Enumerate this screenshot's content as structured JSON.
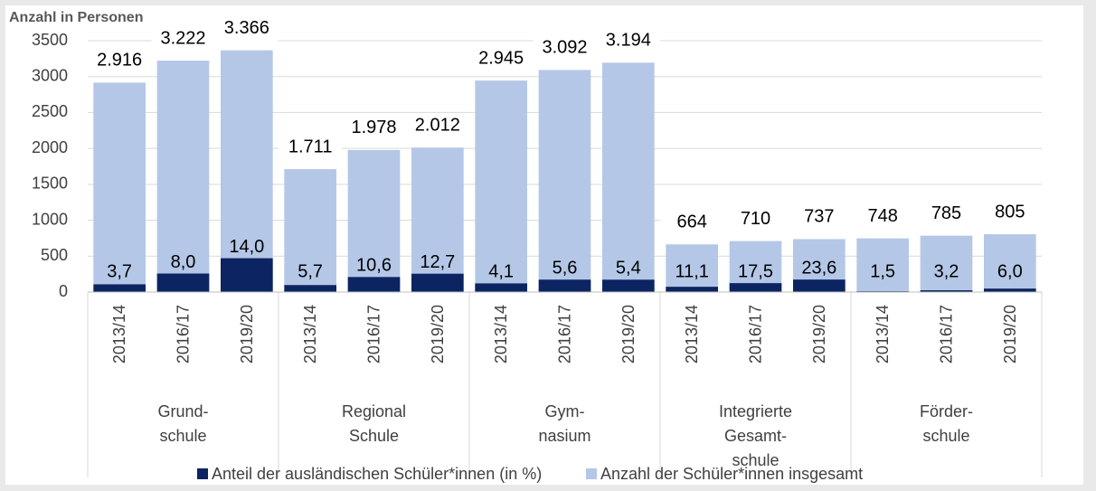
{
  "chart_data": {
    "type": "bar",
    "y_axis_label": "Anzahl in Personen",
    "categories": [
      "2013/14",
      "2016/17",
      "2019/20",
      "2013/14",
      "2016/17",
      "2019/20",
      "2013/14",
      "2016/17",
      "2019/20",
      "2013/14",
      "2016/17",
      "2019/20",
      "2013/14",
      "2016/17",
      "2019/20"
    ],
    "group_labels": [
      [
        "Grund-",
        "schule"
      ],
      [
        "Regional",
        "Schule"
      ],
      [
        "Gym-",
        "nasium"
      ],
      [
        "Integrierte",
        "Gesamt-",
        "schule"
      ],
      [
        "Förder-",
        "schule"
      ]
    ],
    "ylim": [
      0,
      3500
    ],
    "yticks": [
      0,
      500,
      1000,
      1500,
      2000,
      2500,
      3000,
      3500
    ],
    "grid": true,
    "legend": "bottom",
    "series": [
      {
        "name": "Anteil der ausländischen Schüler*innen (in %)",
        "color": "#0c2461",
        "share_of": "total",
        "values": [
          3.7,
          8.0,
          14.0,
          5.7,
          10.6,
          12.7,
          4.1,
          5.6,
          5.4,
          11.1,
          17.5,
          23.6,
          1.5,
          3.2,
          6.0
        ],
        "value_labels": [
          "3,7",
          "8,0",
          "14,0",
          "5,7",
          "10,6",
          "12,7",
          "4,1",
          "5,6",
          "5,4",
          "11,1",
          "17,5",
          "23,6",
          "1,5",
          "3,2",
          "6,0"
        ]
      },
      {
        "name": "Anzahl der Schüler*innen insgesamt",
        "color": "#b4c7e7",
        "values": [
          2916,
          3222,
          3366,
          1711,
          1978,
          2012,
          2945,
          3092,
          3194,
          664,
          710,
          737,
          748,
          785,
          805
        ],
        "value_labels": [
          "2.916",
          "3.222",
          "3.366",
          "1.711",
          "1.978",
          "2.012",
          "2.945",
          "3.092",
          "3.194",
          "664",
          "710",
          "737",
          "748",
          "785",
          "805"
        ]
      }
    ]
  }
}
